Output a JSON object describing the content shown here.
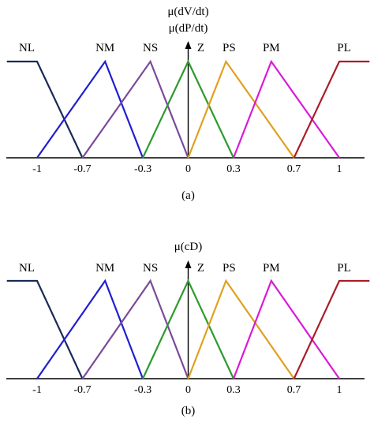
{
  "chart_data": [
    {
      "type": "line",
      "ylabel_lines": [
        "μ(dV/dt)",
        "μ(dP/dt)"
      ],
      "caption": "(a)",
      "ticks": [
        {
          "x": -1,
          "label": "-1"
        },
        {
          "x": -0.7,
          "label": "-0.7"
        },
        {
          "x": -0.3,
          "label": "-0.3"
        },
        {
          "x": 0,
          "label": "0"
        },
        {
          "x": 0.3,
          "label": "0.3"
        },
        {
          "x": 0.7,
          "label": "0.7"
        },
        {
          "x": 1,
          "label": "1"
        }
      ],
      "xlim": [
        -1.2,
        1.2
      ],
      "ylim": [
        0,
        1
      ],
      "series": [
        {
          "name": "NL",
          "color": "#1a2a55",
          "points": [
            [
              -1.2,
              1
            ],
            [
              -1,
              1
            ],
            [
              -0.7,
              0
            ]
          ]
        },
        {
          "name": "NM",
          "color": "#1f1fd0",
          "points": [
            [
              -1,
              0
            ],
            [
              -0.55,
              1
            ],
            [
              -0.3,
              0
            ]
          ]
        },
        {
          "name": "NS",
          "color": "#7a4a9a",
          "points": [
            [
              -0.7,
              0
            ],
            [
              -0.25,
              1
            ],
            [
              0,
              0
            ]
          ]
        },
        {
          "name": "Z",
          "color": "#2e9a2e",
          "points": [
            [
              -0.3,
              0
            ],
            [
              0,
              1
            ],
            [
              0.3,
              0
            ]
          ]
        },
        {
          "name": "PS",
          "color": "#e0a020",
          "points": [
            [
              0,
              0
            ],
            [
              0.25,
              1
            ],
            [
              0.7,
              0
            ]
          ]
        },
        {
          "name": "PM",
          "color": "#d81ad8",
          "points": [
            [
              0.3,
              0
            ],
            [
              0.55,
              1
            ],
            [
              1,
              0
            ]
          ]
        },
        {
          "name": "PL",
          "color": "#a81e2a",
          "points": [
            [
              0.7,
              0
            ],
            [
              1,
              1
            ],
            [
              1.2,
              1
            ]
          ]
        }
      ]
    },
    {
      "type": "line",
      "ylabel_lines": [
        "μ(cD)"
      ],
      "caption": "(b)",
      "ticks": [
        {
          "x": -1,
          "label": "-1"
        },
        {
          "x": -0.7,
          "label": "-0.7"
        },
        {
          "x": -0.3,
          "label": "-0.3"
        },
        {
          "x": 0,
          "label": "0"
        },
        {
          "x": 0.3,
          "label": "0.3"
        },
        {
          "x": 0.7,
          "label": "0.7"
        },
        {
          "x": 1,
          "label": "1"
        }
      ],
      "xlim": [
        -1.2,
        1.2
      ],
      "ylim": [
        0,
        1
      ],
      "series": [
        {
          "name": "NL",
          "color": "#1a2a55",
          "points": [
            [
              -1.2,
              1
            ],
            [
              -1,
              1
            ],
            [
              -0.7,
              0
            ]
          ]
        },
        {
          "name": "NM",
          "color": "#1f1fd0",
          "points": [
            [
              -1,
              0
            ],
            [
              -0.55,
              1
            ],
            [
              -0.3,
              0
            ]
          ]
        },
        {
          "name": "NS",
          "color": "#7a4a9a",
          "points": [
            [
              -0.7,
              0
            ],
            [
              -0.25,
              1
            ],
            [
              0,
              0
            ]
          ]
        },
        {
          "name": "Z",
          "color": "#2e9a2e",
          "points": [
            [
              -0.3,
              0
            ],
            [
              0,
              1
            ],
            [
              0.3,
              0
            ]
          ]
        },
        {
          "name": "PS",
          "color": "#e0a020",
          "points": [
            [
              0,
              0
            ],
            [
              0.25,
              1
            ],
            [
              0.7,
              0
            ]
          ]
        },
        {
          "name": "PM",
          "color": "#d81ad8",
          "points": [
            [
              0.3,
              0
            ],
            [
              0.55,
              1
            ],
            [
              1,
              0
            ]
          ]
        },
        {
          "name": "PL",
          "color": "#a81e2a",
          "points": [
            [
              0.7,
              0
            ],
            [
              1,
              1
            ],
            [
              1.2,
              1
            ]
          ]
        }
      ]
    }
  ]
}
